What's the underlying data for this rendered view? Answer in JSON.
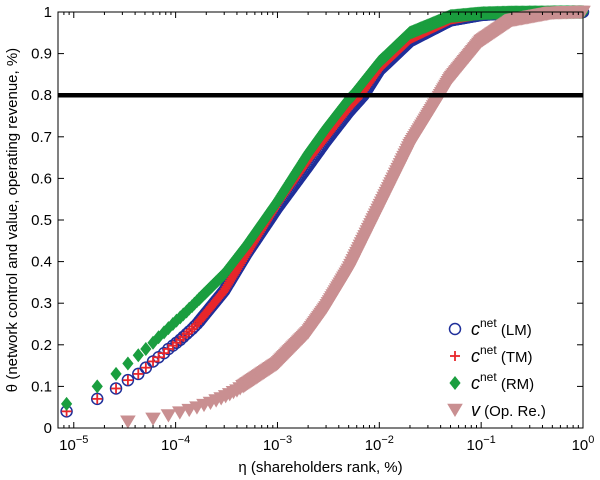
{
  "chart_data": {
    "type": "scatter",
    "xlabel": "η (shareholders rank, %)",
    "ylabel": "θ (network control and value, operating revenue, %)",
    "xscale": "log",
    "xlim": [
      7e-06,
      1
    ],
    "ylim": [
      0,
      1
    ],
    "grid": false,
    "legend_position": "bottom-right",
    "x_ticks": [
      {
        "value": 1e-05,
        "base": "10",
        "exp": "−5"
      },
      {
        "value": 0.0001,
        "base": "10",
        "exp": "−4"
      },
      {
        "value": 0.001,
        "base": "10",
        "exp": "−3"
      },
      {
        "value": 0.01,
        "base": "10",
        "exp": "−2"
      },
      {
        "value": 0.1,
        "base": "10",
        "exp": "−1"
      },
      {
        "value": 1,
        "base": "10",
        "exp": "0"
      }
    ],
    "y_ticks": [
      "0",
      "0.1",
      "0.2",
      "0.3",
      "0.4",
      "0.5",
      "0.6",
      "0.7",
      "0.8",
      "0.9",
      "1"
    ],
    "threshold": {
      "y": 0.8,
      "color": "#000000"
    },
    "series": [
      {
        "legend_main": "c",
        "legend_sup": "net",
        "legend_suffix": " (LM)",
        "marker": "circle",
        "color": "#1f2f9a",
        "points": [
          [
            8.5e-06,
            0.04
          ],
          [
            1.7e-05,
            0.07
          ],
          [
            2.6e-05,
            0.095
          ],
          [
            3.4e-05,
            0.115
          ],
          [
            4.3e-05,
            0.13
          ],
          [
            5.1e-05,
            0.145
          ],
          [
            6e-05,
            0.16
          ],
          [
            6.8e-05,
            0.17
          ],
          [
            7.7e-05,
            0.18
          ],
          [
            8.5e-05,
            0.19
          ],
          [
            9.4e-05,
            0.198
          ],
          [
            0.000102,
            0.205
          ],
          [
            0.000111,
            0.212
          ],
          [
            0.000119,
            0.219
          ],
          [
            0.000128,
            0.226
          ],
          [
            0.000136,
            0.232
          ],
          [
            0.000145,
            0.238
          ],
          [
            0.000153,
            0.244
          ],
          [
            0.000162,
            0.25
          ],
          [
            0.00017,
            0.256
          ]
        ],
        "curve": [
          [
            0.00017,
            0.256
          ],
          [
            0.0003,
            0.33
          ],
          [
            0.0005,
            0.42
          ],
          [
            0.001,
            0.53
          ],
          [
            0.002,
            0.63
          ],
          [
            0.003,
            0.69
          ],
          [
            0.005,
            0.76
          ],
          [
            0.007,
            0.8
          ],
          [
            0.01,
            0.86
          ],
          [
            0.02,
            0.93
          ],
          [
            0.05,
            0.98
          ],
          [
            0.1,
            0.993
          ],
          [
            0.2,
            0.998
          ],
          [
            1,
            1
          ]
        ]
      },
      {
        "legend_main": "c",
        "legend_sup": "net",
        "legend_suffix": " (TM)",
        "marker": "plus",
        "color": "#e8262b",
        "points": [
          [
            8.5e-06,
            0.04
          ],
          [
            1.7e-05,
            0.07
          ],
          [
            2.6e-05,
            0.095
          ],
          [
            3.4e-05,
            0.115
          ],
          [
            4.3e-05,
            0.13
          ],
          [
            5.1e-05,
            0.145
          ],
          [
            6e-05,
            0.16
          ],
          [
            6.8e-05,
            0.17
          ],
          [
            7.7e-05,
            0.18
          ],
          [
            8.5e-05,
            0.19
          ],
          [
            9.4e-05,
            0.198
          ],
          [
            0.000102,
            0.205
          ],
          [
            0.000111,
            0.212
          ],
          [
            0.000119,
            0.219
          ],
          [
            0.000128,
            0.226
          ],
          [
            0.000136,
            0.232
          ],
          [
            0.000145,
            0.238
          ],
          [
            0.000153,
            0.244
          ],
          [
            0.000162,
            0.25
          ],
          [
            0.00017,
            0.256
          ]
        ],
        "curve": [
          [
            0.00017,
            0.256
          ],
          [
            0.0003,
            0.33
          ],
          [
            0.0005,
            0.42
          ],
          [
            0.001,
            0.54
          ],
          [
            0.002,
            0.645
          ],
          [
            0.003,
            0.7
          ],
          [
            0.005,
            0.77
          ],
          [
            0.0065,
            0.8
          ],
          [
            0.01,
            0.865
          ],
          [
            0.02,
            0.935
          ],
          [
            0.05,
            0.982
          ],
          [
            0.1,
            0.995
          ],
          [
            0.2,
            0.999
          ],
          [
            1,
            1
          ]
        ]
      },
      {
        "legend_main": "c",
        "legend_sup": "net",
        "legend_suffix": " (RM)",
        "marker": "diamond",
        "color": "#1a9e3f",
        "points": [
          [
            8.5e-06,
            0.058
          ],
          [
            1.7e-05,
            0.1
          ],
          [
            2.6e-05,
            0.13
          ],
          [
            3.4e-05,
            0.155
          ],
          [
            4.3e-05,
            0.175
          ],
          [
            5.1e-05,
            0.19
          ],
          [
            6e-05,
            0.205
          ],
          [
            6.8e-05,
            0.218
          ],
          [
            7.7e-05,
            0.23
          ],
          [
            8.5e-05,
            0.24
          ],
          [
            9.4e-05,
            0.25
          ],
          [
            0.000102,
            0.258
          ],
          [
            0.000111,
            0.266
          ],
          [
            0.000119,
            0.273
          ],
          [
            0.000128,
            0.28
          ],
          [
            0.000136,
            0.287
          ],
          [
            0.000145,
            0.293
          ],
          [
            0.000153,
            0.299
          ],
          [
            0.000162,
            0.305
          ],
          [
            0.00017,
            0.31
          ]
        ],
        "curve": [
          [
            0.00017,
            0.31
          ],
          [
            0.0003,
            0.37
          ],
          [
            0.0005,
            0.44
          ],
          [
            0.001,
            0.545
          ],
          [
            0.002,
            0.66
          ],
          [
            0.003,
            0.72
          ],
          [
            0.005,
            0.79
          ],
          [
            0.0055,
            0.8
          ],
          [
            0.01,
            0.88
          ],
          [
            0.02,
            0.95
          ],
          [
            0.05,
            0.99
          ],
          [
            0.1,
            0.997
          ],
          [
            0.2,
            0.999
          ],
          [
            1,
            1
          ]
        ]
      },
      {
        "legend_main": "v",
        "legend_sup": "",
        "legend_suffix": " (Op. Re.)",
        "marker": "triangle-down",
        "color": "#c98f91",
        "points": [
          [
            3.4e-05,
            0.015
          ],
          [
            6e-05,
            0.022
          ],
          [
            8.5e-05,
            0.03
          ],
          [
            0.00011,
            0.037
          ],
          [
            0.000136,
            0.043
          ],
          [
            0.000162,
            0.049
          ],
          [
            0.00019,
            0.055
          ],
          [
            0.00022,
            0.06
          ],
          [
            0.00025,
            0.066
          ],
          [
            0.00028,
            0.071
          ],
          [
            0.00031,
            0.076
          ],
          [
            0.00034,
            0.081
          ],
          [
            0.00037,
            0.086
          ],
          [
            0.0004,
            0.09
          ],
          [
            0.00043,
            0.095
          ],
          [
            0.00046,
            0.1
          ]
        ],
        "curve": [
          [
            0.00046,
            0.1
          ],
          [
            0.001,
            0.155
          ],
          [
            0.002,
            0.23
          ],
          [
            0.003,
            0.29
          ],
          [
            0.005,
            0.38
          ],
          [
            0.01,
            0.53
          ],
          [
            0.02,
            0.68
          ],
          [
            0.03,
            0.75
          ],
          [
            0.04,
            0.8
          ],
          [
            0.05,
            0.84
          ],
          [
            0.1,
            0.93
          ],
          [
            0.2,
            0.98
          ],
          [
            0.5,
            0.998
          ],
          [
            1,
            1
          ]
        ]
      }
    ]
  }
}
